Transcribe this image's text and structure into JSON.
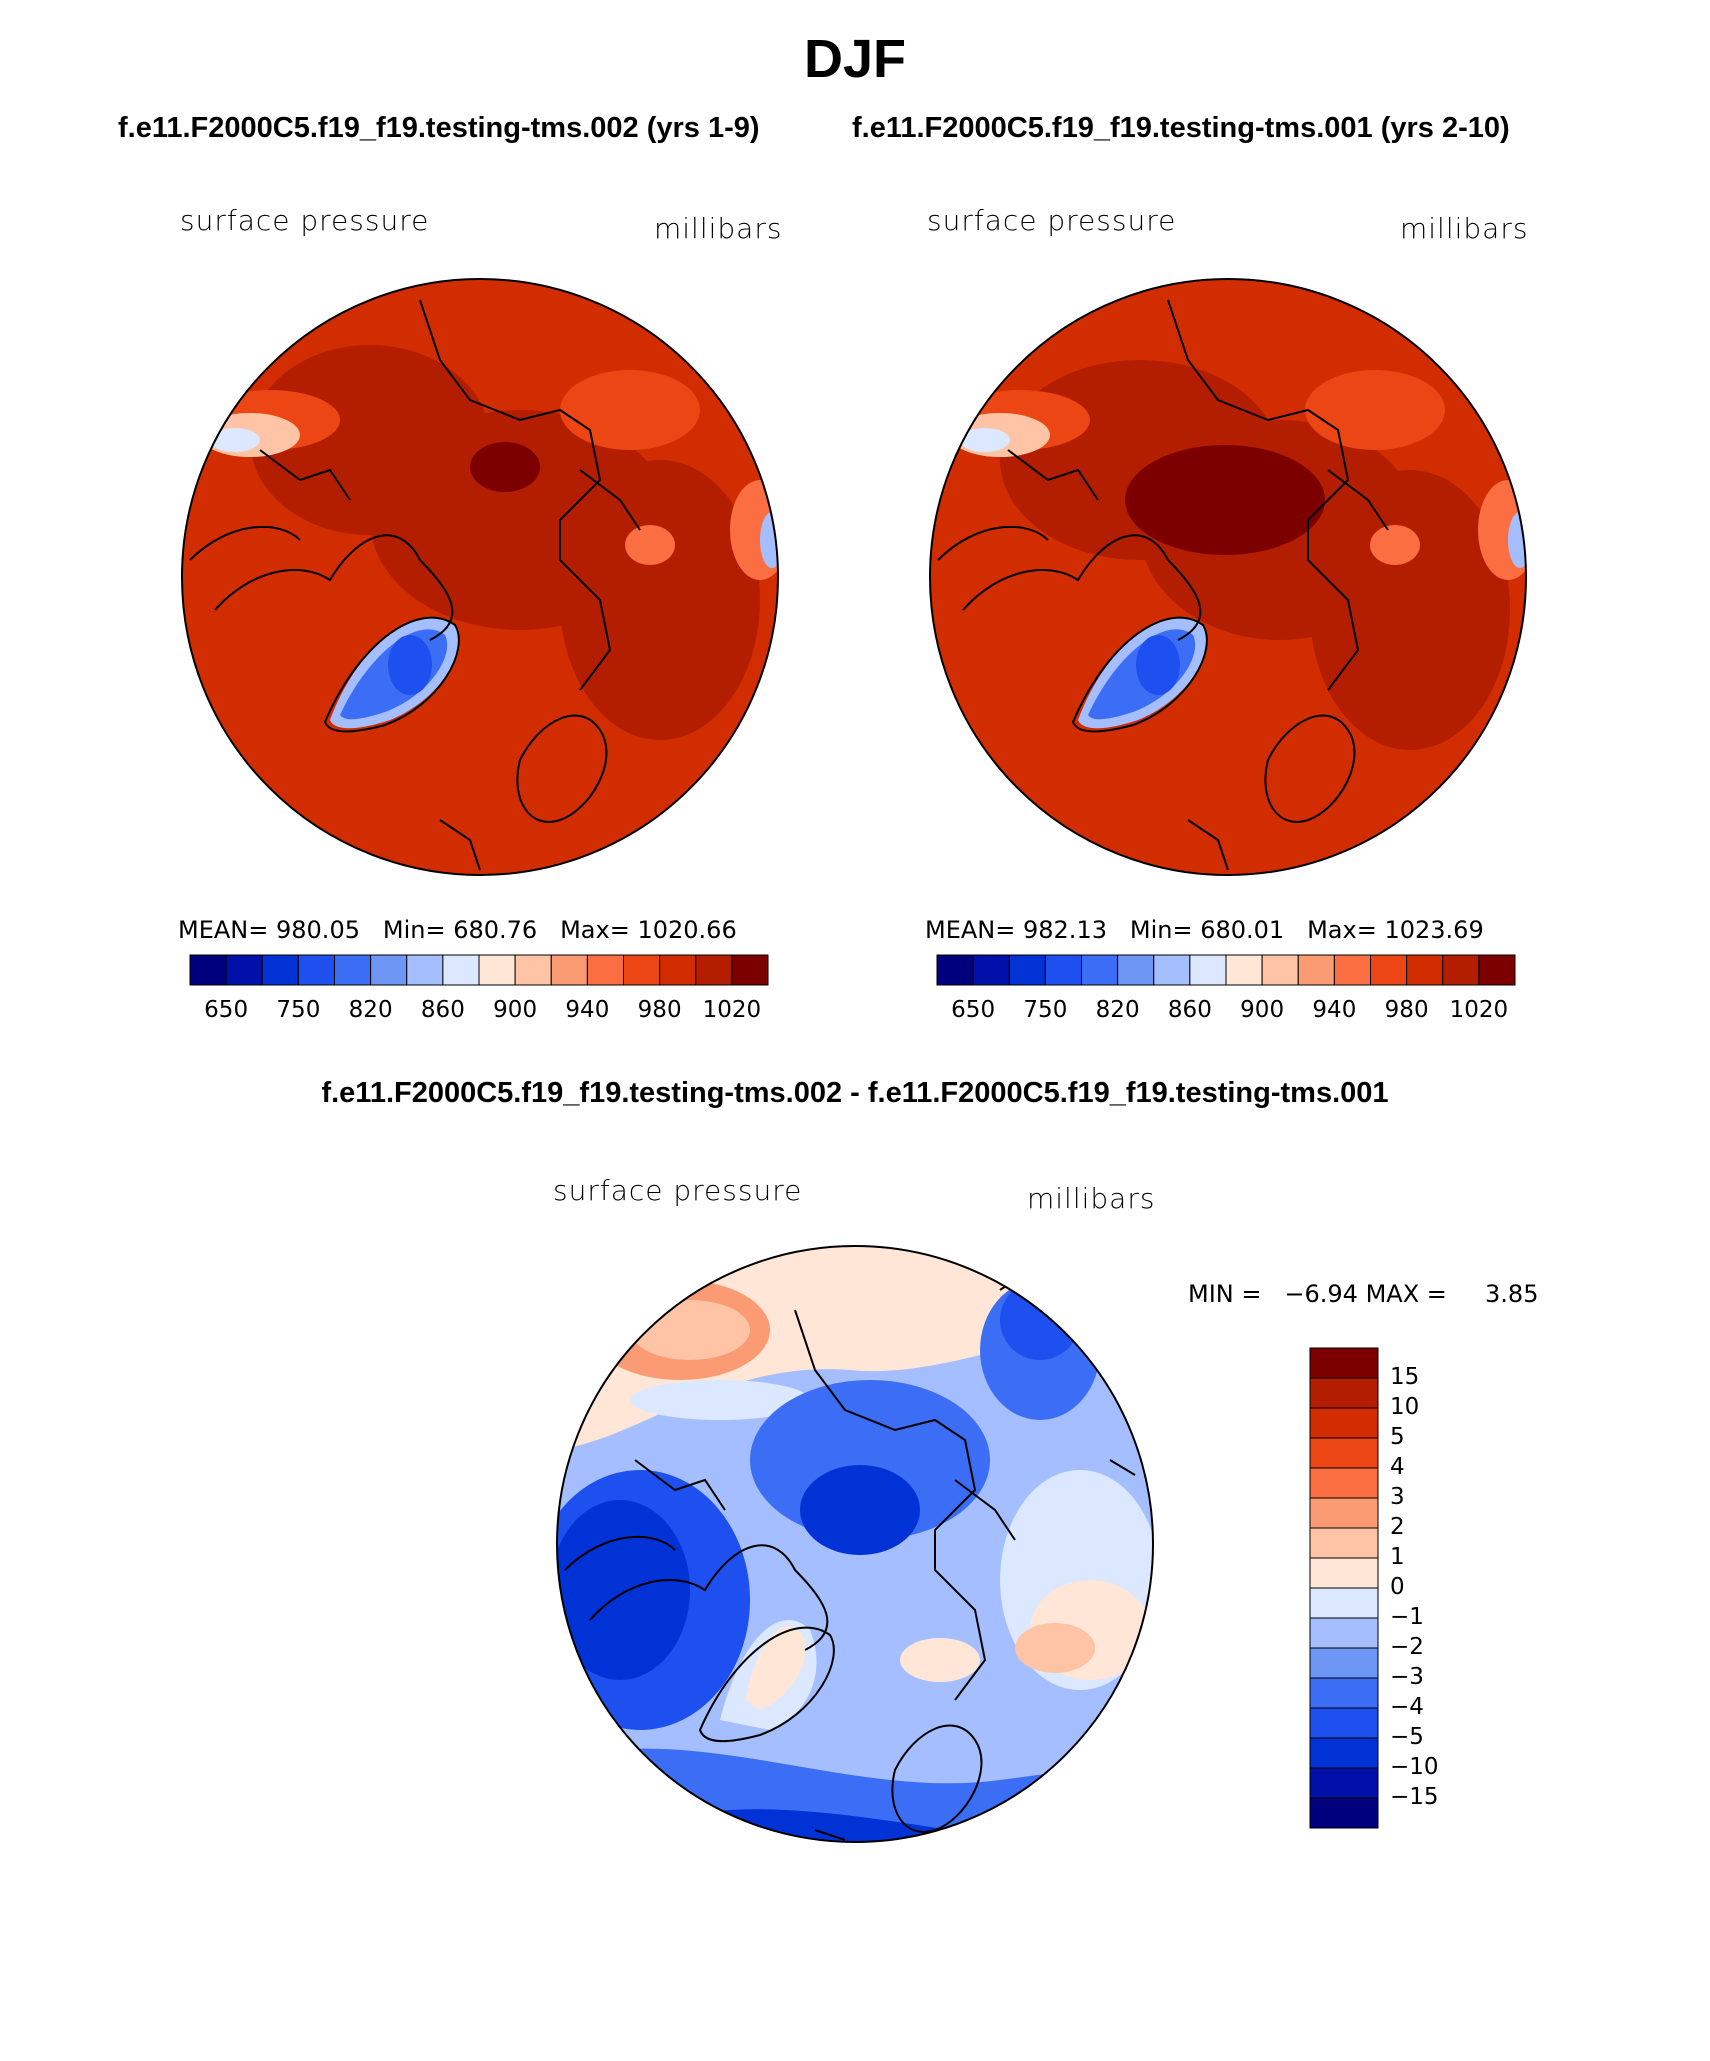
{
  "main_title": "DJF",
  "colors": {
    "land_outline": "#000000",
    "seq_scale": [
      "#00007f",
      "#0010a8",
      "#0032d6",
      "#1e50f0",
      "#3c6ef5",
      "#6e96f5",
      "#a5beff",
      "#dce8ff",
      "#ffe6d7",
      "#ffc3a5",
      "#fa9b73",
      "#fa6e41",
      "#eb4614",
      "#d22d00",
      "#b41e00",
      "#7d0000"
    ],
    "diff_scale": [
      "#00007f",
      "#0010a8",
      "#0032d6",
      "#1e50f0",
      "#3c6ef5",
      "#6e96f5",
      "#a5beff",
      "#dce8ff",
      "#ffe6d7",
      "#ffc3a5",
      "#fa9b73",
      "#fa6e41",
      "#eb4614",
      "#d22d00",
      "#b41e00",
      "#7d0000"
    ]
  },
  "chart_data": [
    {
      "type": "heatmap",
      "projection": "polar-stereographic-north",
      "title": "f.e11.F2000C5.f19_f19.testing-tms.002 (yrs 1-9)",
      "variable": "surface pressure",
      "units": "millibars",
      "stats": {
        "mean_label": "MEAN=",
        "mean": "980.05",
        "min_label": "Min=",
        "min": "680.76",
        "max_label": "Max=",
        "max": "1020.66"
      },
      "colorbar_labels": [
        "650",
        "750",
        "820",
        "860",
        "900",
        "940",
        "980",
        "1020"
      ],
      "colorbar_orientation": "horizontal"
    },
    {
      "type": "heatmap",
      "projection": "polar-stereographic-north",
      "title": "f.e11.F2000C5.f19_f19.testing-tms.001 (yrs 2-10)",
      "variable": "surface pressure",
      "units": "millibars",
      "stats": {
        "mean_label": "MEAN=",
        "mean": "982.13",
        "min_label": "Min=",
        "min": "680.01",
        "max_label": "Max=",
        "max": "1023.69"
      },
      "colorbar_labels": [
        "650",
        "750",
        "820",
        "860",
        "900",
        "940",
        "980",
        "1020"
      ],
      "colorbar_orientation": "horizontal"
    },
    {
      "type": "heatmap",
      "projection": "polar-stereographic-north",
      "title": "f.e11.F2000C5.f19_f19.testing-tms.002 - f.e11.F2000C5.f19_f19.testing-tms.001",
      "variable": "surface pressure",
      "units": "millibars",
      "stats": {
        "min_label": "MIN =",
        "min": "−6.94",
        "max_label": "MAX =",
        "max": "3.85"
      },
      "colorbar_labels": [
        "15",
        "10",
        "5",
        "4",
        "3",
        "2",
        "1",
        "0",
        "−1",
        "−2",
        "−3",
        "−4",
        "−5",
        "−10",
        "−15"
      ],
      "colorbar_orientation": "vertical"
    }
  ]
}
